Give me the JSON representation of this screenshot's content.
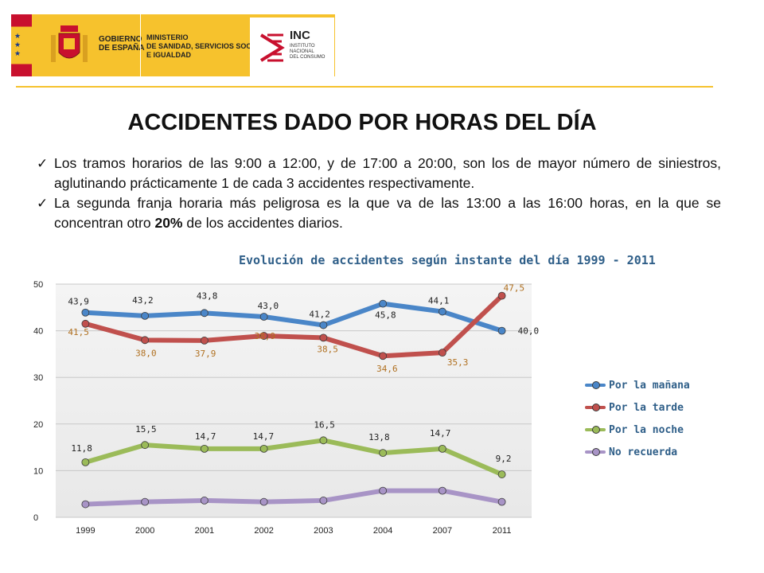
{
  "header": {
    "gov_line1": "GOBIERNO",
    "gov_line2": "DE ESPAÑA",
    "ministry_line1": "MINISTERIO",
    "ministry_line2": "DE SANIDAD, SERVICIOS SOCIALES",
    "ministry_line3": "E IGUALDAD",
    "inc_title": "INC",
    "inc_line1": "INSTITUTO",
    "inc_line2": "NACIONAL",
    "inc_line3": "DEL CONSUMO"
  },
  "title": "ACCIDENTES DADO POR HORAS DEL DÍA",
  "bullets": [
    "Los tramos horarios de las 9:00 a 12:00, y de 17:00 a 20:00, son los de mayor número de siniestros, aglutinando prácticamente 1 de cada 3 accidentes respectivamente.",
    {
      "before": "La segunda franja horaria más peligrosa es la que va de las 13:00 a las 16:00 horas, en la que se concentran otro ",
      "bold": "20%",
      "after": " de los accidentes diarios."
    }
  ],
  "chart_data": {
    "type": "line",
    "title": "Evolución de accidentes según instante del día 1999 - 2011",
    "categories": [
      "1999",
      "2000",
      "2001",
      "2002",
      "2003",
      "2004",
      "2007",
      "2011"
    ],
    "yticks": [
      "0",
      "10",
      "20",
      "30",
      "40",
      "50"
    ],
    "ylim": [
      0,
      50
    ],
    "grid": true,
    "legend_position": "right",
    "series": [
      {
        "name": "Por la mañana",
        "color": "#4a86c8",
        "label_color": "#222222",
        "values": [
          43.9,
          43.2,
          43.8,
          43.0,
          41.2,
          45.8,
          44.1,
          40.0
        ],
        "labels": [
          "43,9",
          "43,2",
          "43,8",
          "43,0",
          "41,2",
          "45,8",
          "44,1",
          "40,0"
        ]
      },
      {
        "name": "Por la tarde",
        "color": "#c0504d",
        "label_color": "#b07020",
        "values": [
          41.5,
          38.0,
          37.9,
          38.9,
          38.5,
          34.6,
          35.3,
          47.5
        ],
        "labels": [
          "41,5",
          "38,0",
          "37,9",
          "38,9",
          "38,5",
          "34,6",
          "35,3",
          "47,5"
        ]
      },
      {
        "name": "Por la noche",
        "color": "#9bbb59",
        "label_color": "#222222",
        "values": [
          11.8,
          15.5,
          14.7,
          14.7,
          16.5,
          13.8,
          14.7,
          9.2
        ],
        "labels": [
          "11,8",
          "15,5",
          "14,7",
          "14,7",
          "16,5",
          "13,8",
          "14,7",
          "9,2"
        ]
      },
      {
        "name": "No recuerda",
        "color": "#a894c6",
        "label_color": "#222222",
        "values": [
          2.8,
          3.3,
          3.6,
          3.3,
          3.6,
          5.7,
          5.7,
          3.3
        ],
        "labels": []
      }
    ]
  }
}
